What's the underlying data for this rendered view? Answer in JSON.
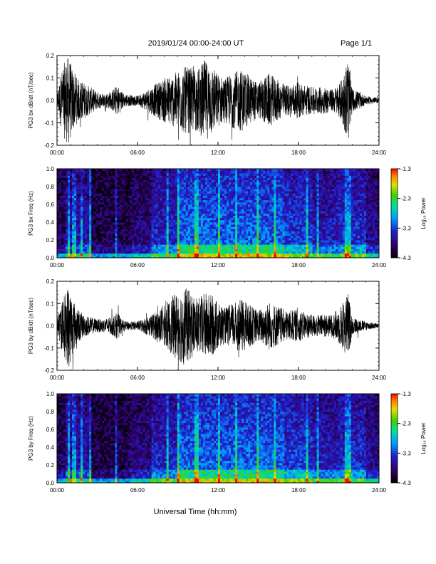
{
  "header": {
    "title": "2019/01/24  00:00-24:00 UT",
    "page": "Page 1/1"
  },
  "footer": {
    "xlabel": "Universal Time (hh:mm)"
  },
  "chart_data": [
    {
      "type": "line",
      "ylabel": "PG3 bx dB/dt (nT/sec)",
      "x_ticks": [
        "00:00",
        "06:00",
        "12:00",
        "18:00",
        "24:00"
      ],
      "xlim": [
        0,
        24
      ],
      "y_ticks": [
        "0.2",
        "0.1",
        "0.0",
        "-0.1",
        "-0.2"
      ],
      "y_tick_values": [
        0.2,
        0.1,
        0.0,
        -0.1,
        -0.2
      ],
      "ylim": [
        -0.2,
        0.2
      ],
      "envelope": {
        "x_hours": [
          0,
          0.3,
          0.6,
          0.9,
          1.1,
          1.5,
          2.0,
          2.5,
          3.0,
          3.5,
          4.0,
          4.5,
          5.0,
          6.0,
          7.0,
          8.0,
          8.7,
          9.5,
          10.5,
          11.0,
          11.5,
          12.0,
          12.5,
          13.0,
          13.8,
          14.5,
          15.0,
          15.8,
          16.5,
          17.0,
          18.0,
          19.0,
          20.0,
          20.5,
          21.0,
          21.4,
          21.7,
          22.0,
          22.5,
          23.0,
          24.0
        ],
        "amplitude": [
          0.03,
          0.12,
          0.18,
          0.2,
          0.15,
          0.1,
          0.08,
          0.06,
          0.04,
          0.03,
          0.04,
          0.07,
          0.03,
          0.02,
          0.06,
          0.1,
          0.12,
          0.15,
          0.14,
          0.18,
          0.16,
          0.12,
          0.1,
          0.12,
          0.14,
          0.1,
          0.08,
          0.12,
          0.09,
          0.07,
          0.08,
          0.06,
          0.06,
          0.05,
          0.07,
          0.13,
          0.2,
          0.05,
          0.04,
          0.02,
          0.01
        ]
      }
    },
    {
      "type": "heatmap",
      "ylabel": "PG3 bx Freq (Hz)",
      "x_ticks": [
        "00:00",
        "06:00",
        "12:00",
        "18:00",
        "24:00"
      ],
      "xlim": [
        0,
        24
      ],
      "y_ticks": [
        "1.0",
        "0.8",
        "0.6",
        "0.4",
        "0.2",
        "0.0"
      ],
      "ylim": [
        0,
        1.0
      ],
      "colorbar": {
        "label": "Log₁₀ Power",
        "ticks": [
          "-1.3",
          "-2.3",
          "-3.3",
          "-4.3"
        ],
        "range": [
          -4.3,
          -1.3
        ]
      }
    },
    {
      "type": "line",
      "ylabel": "PG3 by dB/dt (nT/sec)",
      "x_ticks": [
        "00:00",
        "06:00",
        "12:00",
        "18:00",
        "24:00"
      ],
      "xlim": [
        0,
        24
      ],
      "y_ticks": [
        "0.2",
        "0.1",
        "0.0",
        "-0.1",
        "-0.2"
      ],
      "y_tick_values": [
        0.2,
        0.1,
        0.0,
        -0.1,
        -0.2
      ],
      "ylim": [
        -0.2,
        0.2
      ],
      "envelope": {
        "x_hours": [
          0,
          0.3,
          0.6,
          0.9,
          1.1,
          1.5,
          2.0,
          2.5,
          3.0,
          3.5,
          4.0,
          4.5,
          5.0,
          6.0,
          7.0,
          8.0,
          8.7,
          9.5,
          10.5,
          11.0,
          11.5,
          12.0,
          12.5,
          13.0,
          13.8,
          14.5,
          15.0,
          15.8,
          16.5,
          17.0,
          18.0,
          19.0,
          20.0,
          20.5,
          21.0,
          21.4,
          21.7,
          22.0,
          22.5,
          23.0,
          24.0
        ],
        "amplitude": [
          0.03,
          0.1,
          0.15,
          0.2,
          0.14,
          0.08,
          0.05,
          0.04,
          0.03,
          0.03,
          0.04,
          0.06,
          0.02,
          0.02,
          0.05,
          0.09,
          0.14,
          0.18,
          0.12,
          0.15,
          0.14,
          0.11,
          0.08,
          0.1,
          0.12,
          0.09,
          0.07,
          0.11,
          0.09,
          0.07,
          0.07,
          0.05,
          0.05,
          0.05,
          0.08,
          0.12,
          0.15,
          0.04,
          0.03,
          0.02,
          0.01
        ]
      }
    },
    {
      "type": "heatmap",
      "ylabel": "PG3 by Freq (Hz)",
      "x_ticks": [
        "00:00",
        "06:00",
        "12:00",
        "18:00",
        "24:00"
      ],
      "xlim": [
        0,
        24
      ],
      "y_ticks": [
        "1.0",
        "0.8",
        "0.6",
        "0.4",
        "0.2",
        "0.0"
      ],
      "ylim": [
        0,
        1.0
      ],
      "colorbar": {
        "label": "Log₁₀ Power",
        "ticks": [
          "-1.3",
          "-2.3",
          "-3.3",
          "-4.3"
        ],
        "range": [
          -4.3,
          -1.3
        ]
      }
    }
  ]
}
